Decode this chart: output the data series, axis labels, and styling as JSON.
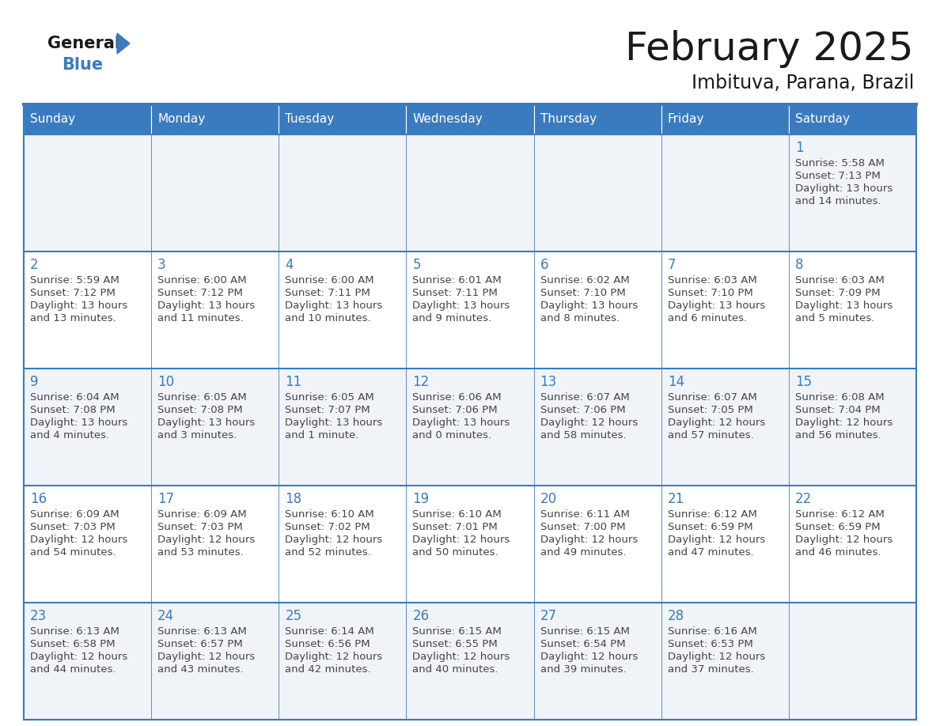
{
  "title": "February 2025",
  "subtitle": "Imbituva, Parana, Brazil",
  "header_bg": "#3a7abf",
  "header_text": "#ffffff",
  "row_bg_odd": "#f0f4f8",
  "row_bg_even": "#ffffff",
  "border_color": "#3a7abf",
  "day_number_color": "#3a7abf",
  "text_color": "#444444",
  "days_of_week": [
    "Sunday",
    "Monday",
    "Tuesday",
    "Wednesday",
    "Thursday",
    "Friday",
    "Saturday"
  ],
  "calendar_data": [
    [
      null,
      null,
      null,
      null,
      null,
      null,
      {
        "day": 1,
        "sunrise": "5:58 AM",
        "sunset": "7:13 PM",
        "daylight_line1": "Daylight: 13 hours",
        "daylight_line2": "and 14 minutes."
      }
    ],
    [
      {
        "day": 2,
        "sunrise": "5:59 AM",
        "sunset": "7:12 PM",
        "daylight_line1": "Daylight: 13 hours",
        "daylight_line2": "and 13 minutes."
      },
      {
        "day": 3,
        "sunrise": "6:00 AM",
        "sunset": "7:12 PM",
        "daylight_line1": "Daylight: 13 hours",
        "daylight_line2": "and 11 minutes."
      },
      {
        "day": 4,
        "sunrise": "6:00 AM",
        "sunset": "7:11 PM",
        "daylight_line1": "Daylight: 13 hours",
        "daylight_line2": "and 10 minutes."
      },
      {
        "day": 5,
        "sunrise": "6:01 AM",
        "sunset": "7:11 PM",
        "daylight_line1": "Daylight: 13 hours",
        "daylight_line2": "and 9 minutes."
      },
      {
        "day": 6,
        "sunrise": "6:02 AM",
        "sunset": "7:10 PM",
        "daylight_line1": "Daylight: 13 hours",
        "daylight_line2": "and 8 minutes."
      },
      {
        "day": 7,
        "sunrise": "6:03 AM",
        "sunset": "7:10 PM",
        "daylight_line1": "Daylight: 13 hours",
        "daylight_line2": "and 6 minutes."
      },
      {
        "day": 8,
        "sunrise": "6:03 AM",
        "sunset": "7:09 PM",
        "daylight_line1": "Daylight: 13 hours",
        "daylight_line2": "and 5 minutes."
      }
    ],
    [
      {
        "day": 9,
        "sunrise": "6:04 AM",
        "sunset": "7:08 PM",
        "daylight_line1": "Daylight: 13 hours",
        "daylight_line2": "and 4 minutes."
      },
      {
        "day": 10,
        "sunrise": "6:05 AM",
        "sunset": "7:08 PM",
        "daylight_line1": "Daylight: 13 hours",
        "daylight_line2": "and 3 minutes."
      },
      {
        "day": 11,
        "sunrise": "6:05 AM",
        "sunset": "7:07 PM",
        "daylight_line1": "Daylight: 13 hours",
        "daylight_line2": "and 1 minute."
      },
      {
        "day": 12,
        "sunrise": "6:06 AM",
        "sunset": "7:06 PM",
        "daylight_line1": "Daylight: 13 hours",
        "daylight_line2": "and 0 minutes."
      },
      {
        "day": 13,
        "sunrise": "6:07 AM",
        "sunset": "7:06 PM",
        "daylight_line1": "Daylight: 12 hours",
        "daylight_line2": "and 58 minutes."
      },
      {
        "day": 14,
        "sunrise": "6:07 AM",
        "sunset": "7:05 PM",
        "daylight_line1": "Daylight: 12 hours",
        "daylight_line2": "and 57 minutes."
      },
      {
        "day": 15,
        "sunrise": "6:08 AM",
        "sunset": "7:04 PM",
        "daylight_line1": "Daylight: 12 hours",
        "daylight_line2": "and 56 minutes."
      }
    ],
    [
      {
        "day": 16,
        "sunrise": "6:09 AM",
        "sunset": "7:03 PM",
        "daylight_line1": "Daylight: 12 hours",
        "daylight_line2": "and 54 minutes."
      },
      {
        "day": 17,
        "sunrise": "6:09 AM",
        "sunset": "7:03 PM",
        "daylight_line1": "Daylight: 12 hours",
        "daylight_line2": "and 53 minutes."
      },
      {
        "day": 18,
        "sunrise": "6:10 AM",
        "sunset": "7:02 PM",
        "daylight_line1": "Daylight: 12 hours",
        "daylight_line2": "and 52 minutes."
      },
      {
        "day": 19,
        "sunrise": "6:10 AM",
        "sunset": "7:01 PM",
        "daylight_line1": "Daylight: 12 hours",
        "daylight_line2": "and 50 minutes."
      },
      {
        "day": 20,
        "sunrise": "6:11 AM",
        "sunset": "7:00 PM",
        "daylight_line1": "Daylight: 12 hours",
        "daylight_line2": "and 49 minutes."
      },
      {
        "day": 21,
        "sunrise": "6:12 AM",
        "sunset": "6:59 PM",
        "daylight_line1": "Daylight: 12 hours",
        "daylight_line2": "and 47 minutes."
      },
      {
        "day": 22,
        "sunrise": "6:12 AM",
        "sunset": "6:59 PM",
        "daylight_line1": "Daylight: 12 hours",
        "daylight_line2": "and 46 minutes."
      }
    ],
    [
      {
        "day": 23,
        "sunrise": "6:13 AM",
        "sunset": "6:58 PM",
        "daylight_line1": "Daylight: 12 hours",
        "daylight_line2": "and 44 minutes."
      },
      {
        "day": 24,
        "sunrise": "6:13 AM",
        "sunset": "6:57 PM",
        "daylight_line1": "Daylight: 12 hours",
        "daylight_line2": "and 43 minutes."
      },
      {
        "day": 25,
        "sunrise": "6:14 AM",
        "sunset": "6:56 PM",
        "daylight_line1": "Daylight: 12 hours",
        "daylight_line2": "and 42 minutes."
      },
      {
        "day": 26,
        "sunrise": "6:15 AM",
        "sunset": "6:55 PM",
        "daylight_line1": "Daylight: 12 hours",
        "daylight_line2": "and 40 minutes."
      },
      {
        "day": 27,
        "sunrise": "6:15 AM",
        "sunset": "6:54 PM",
        "daylight_line1": "Daylight: 12 hours",
        "daylight_line2": "and 39 minutes."
      },
      {
        "day": 28,
        "sunrise": "6:16 AM",
        "sunset": "6:53 PM",
        "daylight_line1": "Daylight: 12 hours",
        "daylight_line2": "and 37 minutes."
      },
      null
    ]
  ]
}
